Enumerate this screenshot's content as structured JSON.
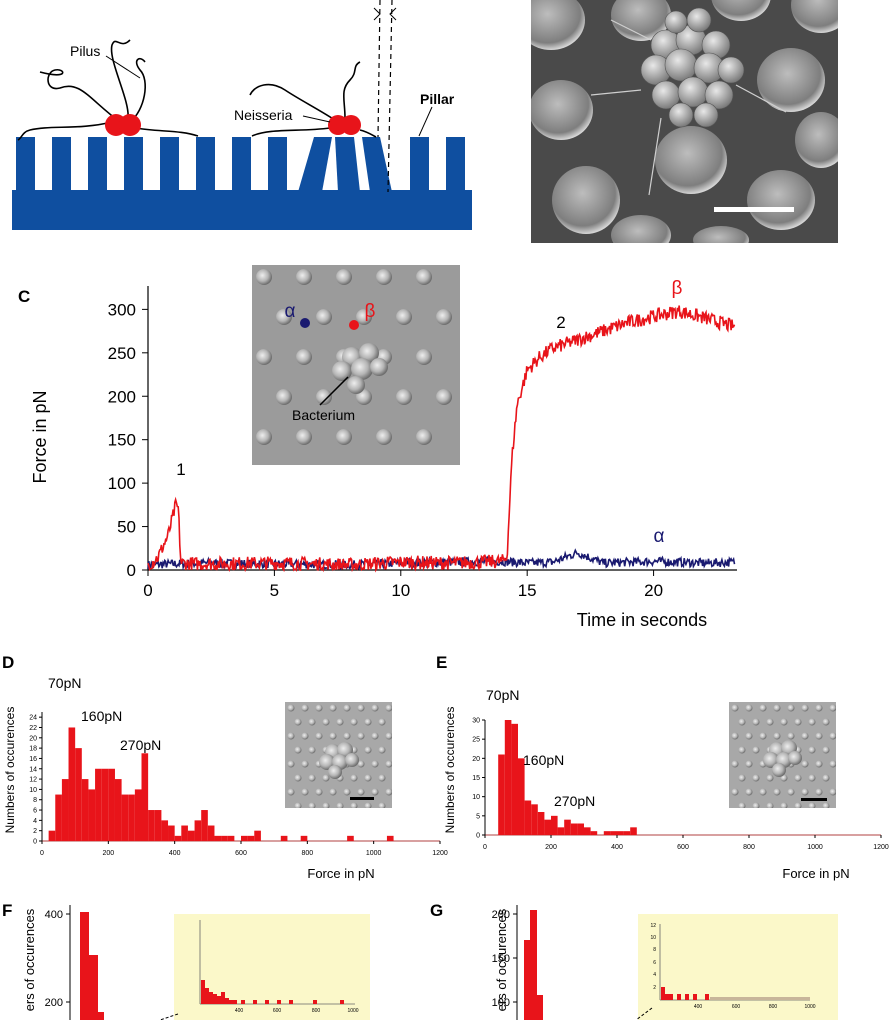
{
  "panelA": {
    "labels": {
      "pilus": "Pilus",
      "neisseria": "Neisseria",
      "pillar": "Pillar"
    }
  },
  "panelC": {
    "letter": "C",
    "inset": {
      "alpha": "α",
      "beta": "β",
      "bacterium": "Bacterium"
    },
    "peak1": "1",
    "peak2": "2",
    "beta_label": "β",
    "alpha_label": "α",
    "colors": {
      "beta": "#e8141a",
      "alpha": "#1a1a70"
    },
    "chart_data": {
      "type": "line",
      "xlabel": "Time in seconds",
      "ylabel": "Force in pN",
      "xlim": [
        0,
        23.3
      ],
      "ylim": [
        0,
        320
      ],
      "xticks": [
        "0",
        "5",
        "10",
        "15",
        "20"
      ],
      "yticks": [
        "0",
        "50",
        "100",
        "150",
        "200",
        "250",
        "300"
      ],
      "series": [
        {
          "name": "β",
          "x": [
            0,
            0.4,
            0.8,
            1.1,
            1.2,
            1.3,
            2,
            5,
            8,
            10,
            12,
            14,
            14.2,
            14.4,
            14.6,
            15,
            15.5,
            16,
            17,
            18,
            19,
            20,
            21,
            22,
            23.2
          ],
          "y": [
            5,
            15,
            40,
            75,
            70,
            8,
            7,
            8,
            6,
            9,
            8,
            10,
            15,
            130,
            190,
            230,
            245,
            255,
            265,
            275,
            285,
            292,
            298,
            290,
            280
          ]
        },
        {
          "name": "α",
          "x": [
            0,
            2,
            5,
            8,
            10,
            12,
            14,
            15,
            16,
            17,
            18,
            19,
            20,
            21,
            22,
            23.2
          ],
          "y": [
            6,
            8,
            7,
            6,
            8,
            9,
            10,
            8,
            9,
            20,
            8,
            9,
            10,
            9,
            8,
            9
          ]
        }
      ]
    }
  },
  "panelD": {
    "letter": "D",
    "ann70": "70pN",
    "ann160": "160pN",
    "ann270": "270pN",
    "chart_data": {
      "type": "bar",
      "xlabel": "Force in pN",
      "ylabel": "Numbers of occurences",
      "xlim": [
        0,
        1200
      ],
      "ylim": [
        0,
        25
      ],
      "xticks": [
        "0",
        "200",
        "400",
        "600",
        "800",
        "1000",
        "1200"
      ],
      "yticks": [
        "0",
        "2",
        "4",
        "6",
        "8",
        "10",
        "12",
        "14",
        "16",
        "18",
        "20",
        "22",
        "24"
      ],
      "bin_width": 20,
      "bin_starts": [
        20,
        40,
        60,
        80,
        100,
        120,
        140,
        160,
        180,
        200,
        220,
        240,
        260,
        280,
        300,
        320,
        340,
        360,
        380,
        400,
        420,
        440,
        460,
        480,
        500,
        520,
        540,
        560,
        600,
        620,
        640,
        720,
        780,
        920,
        1040
      ],
      "values": [
        2,
        9,
        12,
        22,
        18,
        12,
        10,
        14,
        14,
        14,
        12,
        9,
        9,
        10,
        17,
        6,
        6,
        4,
        3,
        1,
        3,
        2,
        4,
        6,
        3,
        1,
        1,
        1,
        1,
        1,
        2,
        1,
        1,
        1,
        1
      ]
    }
  },
  "panelE": {
    "letter": "E",
    "ann70": "70pN",
    "ann160": "160pN",
    "ann270": "270pN",
    "chart_data": {
      "type": "bar",
      "xlabel": "Force in pN",
      "ylabel": "Numbers of occurences",
      "xlim": [
        0,
        1200
      ],
      "ylim": [
        0,
        30
      ],
      "xticks": [
        "0",
        "200",
        "400",
        "600",
        "800",
        "1000",
        "1200"
      ],
      "yticks": [
        "0",
        "5",
        "10",
        "15",
        "20",
        "25",
        "30"
      ],
      "bin_width": 20,
      "bin_starts": [
        40,
        60,
        80,
        100,
        120,
        140,
        160,
        180,
        200,
        220,
        240,
        260,
        280,
        300,
        320,
        360,
        380,
        400,
        420,
        440
      ],
      "values": [
        21,
        30,
        29,
        20,
        9,
        8,
        6,
        4,
        5,
        2,
        4,
        3,
        3,
        2,
        1,
        1,
        1,
        1,
        1,
        2
      ]
    }
  },
  "panelF": {
    "letter": "F",
    "ylabel": "ers of occurences",
    "yticks": [
      "200",
      "400"
    ],
    "inset_xticks": [
      "400",
      "600",
      "800",
      "1000"
    ]
  },
  "panelG": {
    "letter": "G",
    "ylabel": "ers of occurences",
    "yticks": [
      "100",
      "150",
      "200"
    ],
    "inset_yticks": [
      "2",
      "4",
      "6",
      "8",
      "10",
      "12"
    ],
    "inset_xticks": [
      "400",
      "600",
      "800",
      "1000"
    ]
  }
}
